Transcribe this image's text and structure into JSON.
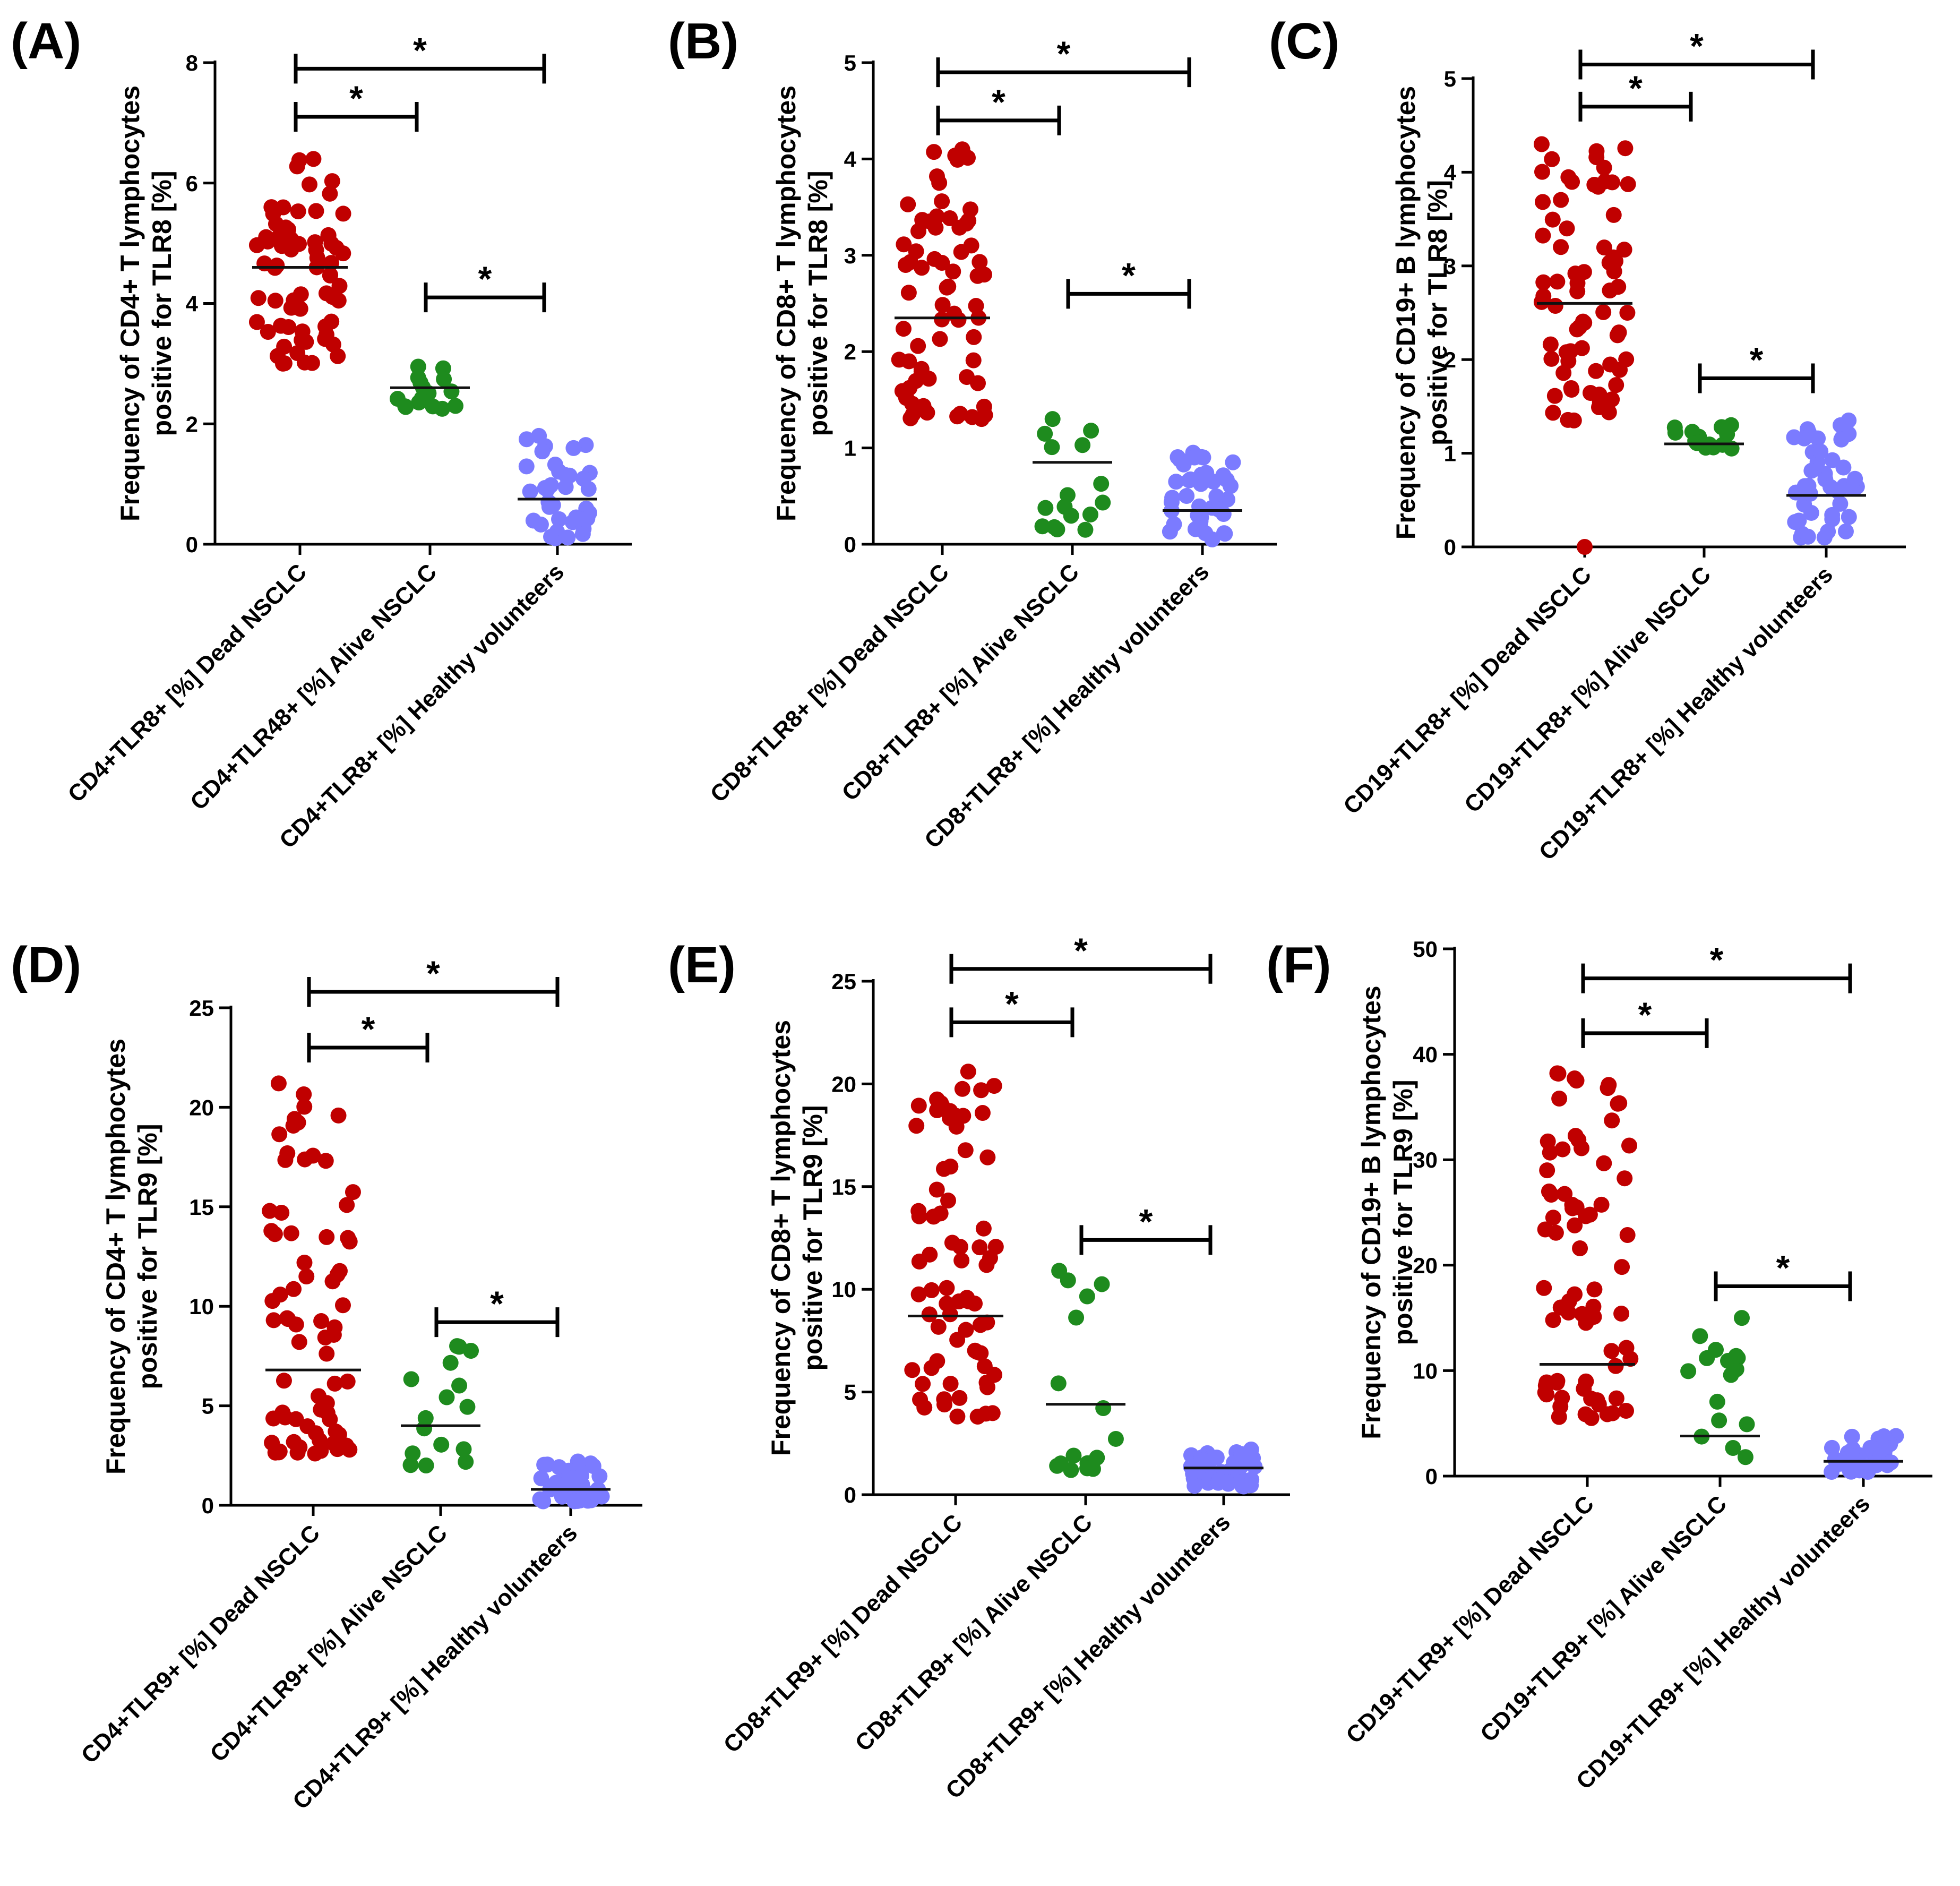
{
  "colors": {
    "dead": "#C00000",
    "alive": "#1E8B1E",
    "healthy": "#7B7BFF",
    "axis": "#000000"
  },
  "chart_data": [
    {
      "panel": "(A)",
      "type": "scatter",
      "ylabel": [
        "Frequency of CD4+ T lymphocytes",
        "positive for TLR8 [%]"
      ],
      "ylim": [
        0,
        8
      ],
      "yticks": [
        "0",
        "2",
        "4",
        "6",
        "8"
      ],
      "ytick_values": [
        0,
        2,
        4,
        6,
        8
      ],
      "categories": [
        "CD4+TLR8+ [%] Dead NSCLC",
        "CD4+TLR48+ [%] Alive NSCLC",
        "CD4+TLR8+ [%] Healthy volunteers"
      ],
      "groups": [
        {
          "n": 70,
          "min": 3.0,
          "max": 6.4,
          "median": 4.6
        },
        {
          "n": 16,
          "min": 2.25,
          "max": 2.95,
          "median": 2.6
        },
        {
          "n": 38,
          "min": 0.1,
          "max": 1.8,
          "median": 0.75
        }
      ],
      "comparisons": [
        {
          "from": 0,
          "to": 1,
          "y": 7.1,
          "label": "*"
        },
        {
          "from": 0,
          "to": 2,
          "y": 7.9,
          "label": "*"
        },
        {
          "from": 1,
          "to": 2,
          "y": 4.1,
          "label": "*"
        }
      ]
    },
    {
      "panel": "(B)",
      "type": "scatter",
      "ylabel": [
        "Frequency of CD8+ T lymphocytes",
        "positive for TLR8 [%]"
      ],
      "ylim": [
        0,
        5
      ],
      "yticks": [
        "0",
        "1",
        "2",
        "3",
        "4",
        "5"
      ],
      "ytick_values": [
        0,
        1,
        2,
        3,
        4,
        5
      ],
      "categories": [
        "CD8+TLR8+ [%] Dead NSCLC",
        "CD8+TLR8+ [%] Alive NSCLC",
        "CD8+TLR8+ [%] Healthy volunteers"
      ],
      "groups": [
        {
          "n": 70,
          "min": 1.3,
          "max": 4.1,
          "median": 2.35
        },
        {
          "n": 16,
          "min": 0.15,
          "max": 1.3,
          "median": 0.85
        },
        {
          "n": 40,
          "min": 0.05,
          "max": 0.95,
          "median": 0.35
        }
      ],
      "comparisons": [
        {
          "from": 0,
          "to": 1,
          "y": 4.4,
          "label": "*"
        },
        {
          "from": 0,
          "to": 2,
          "y": 4.9,
          "label": "*"
        },
        {
          "from": 1,
          "to": 2,
          "y": 2.6,
          "label": "*"
        }
      ]
    },
    {
      "panel": "(C)",
      "type": "scatter",
      "ylabel": [
        "Frequency of CD19+ B lymphocytes",
        "positive for TLR8 [%]"
      ],
      "ylim": [
        0,
        5
      ],
      "yticks": [
        "0",
        "1",
        "2",
        "3",
        "4",
        "5"
      ],
      "ytick_values": [
        0,
        1,
        2,
        3,
        4,
        5
      ],
      "categories": [
        "CD19+TLR8+ [%] Dead NSCLC",
        "CD19+TLR8+ [%] Alive NSCLC",
        "CD19+TLR8+ [%] Healthy volunteers"
      ],
      "groups": [
        {
          "n": 70,
          "min": 1.35,
          "max": 4.3,
          "median": 2.6,
          "extra": [
            0.0
          ]
        },
        {
          "n": 16,
          "min": 1.05,
          "max": 1.3,
          "median": 1.1
        },
        {
          "n": 42,
          "min": 0.1,
          "max": 1.35,
          "median": 0.55
        }
      ],
      "comparisons": [
        {
          "from": 0,
          "to": 1,
          "y": 4.7,
          "label": "*"
        },
        {
          "from": 0,
          "to": 2,
          "y": 5.15,
          "label": "*"
        },
        {
          "from": 1,
          "to": 2,
          "y": 1.8,
          "label": "*"
        }
      ]
    },
    {
      "panel": "(D)",
      "type": "scatter",
      "ylabel": [
        "Frequency of CD4+ T lymphocytes",
        "positive for TLR9 [%]"
      ],
      "ylim": [
        0,
        25
      ],
      "yticks": [
        "0",
        "5",
        "10",
        "15",
        "20",
        "25"
      ],
      "ytick_values": [
        0,
        5,
        10,
        15,
        20,
        25
      ],
      "categories": [
        "CD4+TLR9+ [%] Dead NSCLC",
        "CD4+TLR9+ [%] Alive NSCLC",
        "CD4+TLR9+ [%] Healthy volunteers"
      ],
      "groups": [
        {
          "n": 72,
          "min": 2.6,
          "max": 21.2,
          "median": 6.8
        },
        {
          "n": 16,
          "min": 2.0,
          "max": 8.0,
          "median": 4.0
        },
        {
          "n": 40,
          "min": 0.2,
          "max": 2.2,
          "median": 0.8
        }
      ],
      "comparisons": [
        {
          "from": 0,
          "to": 1,
          "y": 23.0,
          "label": "*"
        },
        {
          "from": 0,
          "to": 2,
          "y": 25.8,
          "label": "*"
        },
        {
          "from": 1,
          "to": 2,
          "y": 9.2,
          "label": "*"
        }
      ]
    },
    {
      "panel": "(E)",
      "type": "scatter",
      "ylabel": [
        "Frequency of CD8+ T lymphocytes",
        "positive for TLR9 [%]"
      ],
      "ylim": [
        0,
        25
      ],
      "yticks": [
        "0",
        "5",
        "10",
        "15",
        "20",
        "25"
      ],
      "ytick_values": [
        0,
        5,
        10,
        15,
        20,
        25
      ],
      "categories": [
        "CD8+TLR9+ [%] Dead NSCLC",
        "CD8+TLR9+ [%] Alive NSCLC",
        "CD8+TLR9+ [%] Healthy volunteers"
      ],
      "groups": [
        {
          "n": 72,
          "min": 3.8,
          "max": 20.6,
          "median": 8.7
        },
        {
          "n": 16,
          "min": 1.2,
          "max": 10.9,
          "median": 4.4
        },
        {
          "n": 40,
          "min": 0.4,
          "max": 2.2,
          "median": 1.3
        }
      ],
      "comparisons": [
        {
          "from": 0,
          "to": 1,
          "y": 23.0,
          "label": "*"
        },
        {
          "from": 0,
          "to": 2,
          "y": 25.6,
          "label": "*"
        },
        {
          "from": 1,
          "to": 2,
          "y": 12.4,
          "label": "*"
        }
      ]
    },
    {
      "panel": "(F)",
      "type": "scatter",
      "ylabel": [
        "Frequency of CD19+ B lymphocytes",
        "positive for TLR9 [%]"
      ],
      "ylim": [
        0,
        50
      ],
      "yticks": [
        "0",
        "10",
        "20",
        "30",
        "40",
        "50"
      ],
      "ytick_values": [
        0,
        10,
        20,
        30,
        40,
        50
      ],
      "categories": [
        "CD19+TLR9+ [%] Dead NSCLC",
        "CD19+TLR9+ [%] Alive NSCLC",
        "CD19+TLR9+ [%] Healthy volunteers"
      ],
      "groups": [
        {
          "n": 72,
          "min": 5.5,
          "max": 38.2,
          "median": 10.6
        },
        {
          "n": 16,
          "min": 1.8,
          "max": 15.0,
          "median": 3.8
        },
        {
          "n": 40,
          "min": 0.4,
          "max": 3.8,
          "median": 1.4
        }
      ],
      "comparisons": [
        {
          "from": 0,
          "to": 1,
          "y": 42.0,
          "label": "*"
        },
        {
          "from": 0,
          "to": 2,
          "y": 47.2,
          "label": "*"
        },
        {
          "from": 1,
          "to": 2,
          "y": 18.0,
          "label": "*"
        }
      ]
    }
  ]
}
